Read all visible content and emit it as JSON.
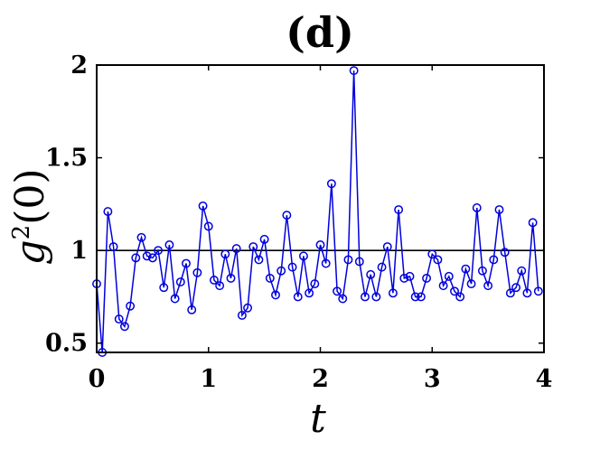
{
  "chart_data": {
    "type": "line",
    "title": "(d)",
    "xlabel": "t",
    "ylabel_main": "g",
    "ylabel_sup": "2",
    "ylabel_rest": "(0)",
    "xlim": [
      0,
      4
    ],
    "ylim": [
      0.45,
      2
    ],
    "xticks": [
      {
        "value": 0,
        "label": "0"
      },
      {
        "value": 1,
        "label": "1"
      },
      {
        "value": 2,
        "label": "2"
      },
      {
        "value": 3,
        "label": "3"
      },
      {
        "value": 4,
        "label": "4"
      }
    ],
    "yticks": [
      {
        "value": 0.5,
        "label": "0.5"
      },
      {
        "value": 1,
        "label": "1"
      },
      {
        "value": 1.5,
        "label": "1.5"
      },
      {
        "value": 2,
        "label": "2"
      }
    ],
    "reference_line": 1,
    "line_color": "#0000dd",
    "reference_color": "#000000",
    "x": [
      0,
      0.05,
      0.1,
      0.15,
      0.2,
      0.25,
      0.3,
      0.35,
      0.4,
      0.45,
      0.5,
      0.55,
      0.6,
      0.65,
      0.7,
      0.75,
      0.8,
      0.85,
      0.9,
      0.95,
      1.0,
      1.05,
      1.1,
      1.15,
      1.2,
      1.25,
      1.3,
      1.35,
      1.4,
      1.45,
      1.5,
      1.55,
      1.6,
      1.65,
      1.7,
      1.75,
      1.8,
      1.85,
      1.9,
      1.95,
      2.0,
      2.05,
      2.1,
      2.15,
      2.2,
      2.25,
      2.3,
      2.35,
      2.4,
      2.45,
      2.5,
      2.55,
      2.6,
      2.65,
      2.7,
      2.75,
      2.8,
      2.85,
      2.9,
      2.95,
      3.0,
      3.05,
      3.1,
      3.15,
      3.2,
      3.25,
      3.3,
      3.35,
      3.4,
      3.45,
      3.5,
      3.55,
      3.6,
      3.65,
      3.7,
      3.75,
      3.8,
      3.85,
      3.9,
      3.95
    ],
    "y": [
      0.82,
      0.45,
      1.21,
      1.02,
      0.63,
      0.59,
      0.7,
      0.96,
      1.07,
      0.97,
      0.96,
      1.0,
      0.8,
      1.03,
      0.74,
      0.83,
      0.93,
      0.68,
      0.88,
      1.24,
      1.13,
      0.84,
      0.81,
      0.98,
      0.85,
      1.01,
      0.65,
      0.69,
      1.02,
      0.95,
      1.06,
      0.85,
      0.76,
      0.89,
      1.19,
      0.91,
      0.75,
      0.97,
      0.77,
      0.82,
      1.03,
      0.93,
      1.36,
      0.78,
      0.74,
      0.95,
      1.97,
      0.94,
      0.75,
      0.87,
      0.75,
      0.91,
      1.02,
      0.77,
      1.22,
      0.85,
      0.86,
      0.75,
      0.75,
      0.85,
      0.98,
      0.95,
      0.81,
      0.86,
      0.78,
      0.75,
      0.9,
      0.82,
      1.23,
      0.89,
      0.81,
      0.95,
      1.22,
      0.99,
      0.77,
      0.8,
      0.89,
      0.77,
      1.15,
      0.78
    ]
  }
}
